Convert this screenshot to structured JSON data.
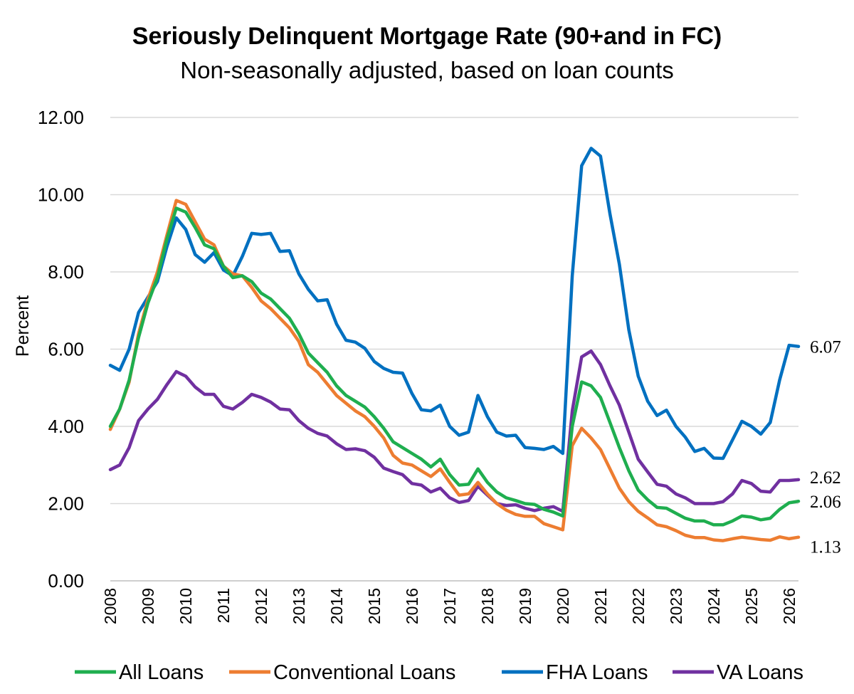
{
  "chart_data": {
    "type": "line",
    "title": "Seriously Delinquent Mortgage Rate (90+and in FC)",
    "subtitle": "Non-seasonally adjusted, based on loan counts",
    "ylabel": "Percent",
    "ylim": [
      0,
      12
    ],
    "yticks": [
      "0.00",
      "2.00",
      "4.00",
      "6.00",
      "8.00",
      "10.00",
      "12.00"
    ],
    "xlim": [
      2008,
      2026.25
    ],
    "xticks": [
      "2008",
      "2009",
      "2010",
      "2011",
      "2012",
      "2013",
      "2014",
      "2015",
      "2016",
      "2017",
      "2018",
      "2019",
      "2020",
      "2021",
      "2022",
      "2023",
      "2024",
      "2025",
      "2026"
    ],
    "grid": "horizontal",
    "legend_position": "bottom",
    "series": [
      {
        "name": "All Loans",
        "color": "#1fae4f",
        "end_label": "2.06",
        "points": [
          [
            2008,
            4.0
          ],
          [
            2008.25,
            4.45
          ],
          [
            2008.5,
            5.2
          ],
          [
            2008.75,
            6.3
          ],
          [
            2009,
            7.2
          ],
          [
            2009.25,
            7.85
          ],
          [
            2009.5,
            8.85
          ],
          [
            2009.75,
            9.65
          ],
          [
            2010,
            9.55
          ],
          [
            2010.25,
            9.15
          ],
          [
            2010.5,
            8.7
          ],
          [
            2010.75,
            8.6
          ],
          [
            2011,
            8.15
          ],
          [
            2011.25,
            7.85
          ],
          [
            2011.5,
            7.9
          ],
          [
            2011.75,
            7.75
          ],
          [
            2012,
            7.45
          ],
          [
            2012.25,
            7.3
          ],
          [
            2012.5,
            7.05
          ],
          [
            2012.75,
            6.8
          ],
          [
            2013,
            6.4
          ],
          [
            2013.25,
            5.9
          ],
          [
            2013.5,
            5.65
          ],
          [
            2013.75,
            5.4
          ],
          [
            2014,
            5.05
          ],
          [
            2014.25,
            4.8
          ],
          [
            2014.5,
            4.65
          ],
          [
            2014.75,
            4.5
          ],
          [
            2015,
            4.25
          ],
          [
            2015.25,
            3.95
          ],
          [
            2015.5,
            3.6
          ],
          [
            2015.75,
            3.45
          ],
          [
            2016,
            3.3
          ],
          [
            2016.25,
            3.15
          ],
          [
            2016.5,
            2.95
          ],
          [
            2016.75,
            3.15
          ],
          [
            2017,
            2.75
          ],
          [
            2017.25,
            2.48
          ],
          [
            2017.5,
            2.5
          ],
          [
            2017.75,
            2.9
          ],
          [
            2018,
            2.55
          ],
          [
            2018.25,
            2.3
          ],
          [
            2018.5,
            2.15
          ],
          [
            2018.75,
            2.08
          ],
          [
            2019,
            2.0
          ],
          [
            2019.25,
            1.98
          ],
          [
            2019.5,
            1.85
          ],
          [
            2019.75,
            1.78
          ],
          [
            2020,
            1.68
          ],
          [
            2020.25,
            4.0
          ],
          [
            2020.5,
            5.15
          ],
          [
            2020.75,
            5.05
          ],
          [
            2021,
            4.75
          ],
          [
            2021.25,
            4.1
          ],
          [
            2021.5,
            3.45
          ],
          [
            2021.75,
            2.85
          ],
          [
            2022,
            2.35
          ],
          [
            2022.25,
            2.1
          ],
          [
            2022.5,
            1.9
          ],
          [
            2022.75,
            1.88
          ],
          [
            2023,
            1.75
          ],
          [
            2023.25,
            1.62
          ],
          [
            2023.5,
            1.55
          ],
          [
            2023.75,
            1.55
          ],
          [
            2024,
            1.45
          ],
          [
            2024.25,
            1.45
          ],
          [
            2024.5,
            1.55
          ],
          [
            2024.75,
            1.68
          ],
          [
            2025,
            1.65
          ],
          [
            2025.25,
            1.58
          ],
          [
            2025.5,
            1.62
          ],
          [
            2025.75,
            1.85
          ],
          [
            2026,
            2.02
          ],
          [
            2026.25,
            2.06
          ]
        ]
      },
      {
        "name": "Conventional Loans",
        "color": "#ed7d31",
        "end_label": "1.13",
        "points": [
          [
            2008,
            3.92
          ],
          [
            2008.25,
            4.45
          ],
          [
            2008.5,
            5.15
          ],
          [
            2008.75,
            6.4
          ],
          [
            2009,
            7.3
          ],
          [
            2009.25,
            8.0
          ],
          [
            2009.5,
            8.95
          ],
          [
            2009.75,
            9.85
          ],
          [
            2010,
            9.75
          ],
          [
            2010.25,
            9.3
          ],
          [
            2010.5,
            8.85
          ],
          [
            2010.75,
            8.7
          ],
          [
            2011,
            8.15
          ],
          [
            2011.25,
            7.95
          ],
          [
            2011.5,
            7.9
          ],
          [
            2011.75,
            7.6
          ],
          [
            2012,
            7.25
          ],
          [
            2012.25,
            7.05
          ],
          [
            2012.5,
            6.8
          ],
          [
            2012.75,
            6.55
          ],
          [
            2013,
            6.2
          ],
          [
            2013.25,
            5.6
          ],
          [
            2013.5,
            5.4
          ],
          [
            2013.75,
            5.1
          ],
          [
            2014,
            4.8
          ],
          [
            2014.25,
            4.6
          ],
          [
            2014.5,
            4.4
          ],
          [
            2014.75,
            4.25
          ],
          [
            2015,
            4.0
          ],
          [
            2015.25,
            3.7
          ],
          [
            2015.5,
            3.25
          ],
          [
            2015.75,
            3.05
          ],
          [
            2016,
            3.0
          ],
          [
            2016.25,
            2.85
          ],
          [
            2016.5,
            2.7
          ],
          [
            2016.75,
            2.9
          ],
          [
            2017,
            2.55
          ],
          [
            2017.25,
            2.22
          ],
          [
            2017.5,
            2.25
          ],
          [
            2017.75,
            2.55
          ],
          [
            2018,
            2.25
          ],
          [
            2018.25,
            2.0
          ],
          [
            2018.5,
            1.83
          ],
          [
            2018.75,
            1.72
          ],
          [
            2019,
            1.67
          ],
          [
            2019.25,
            1.67
          ],
          [
            2019.5,
            1.48
          ],
          [
            2019.75,
            1.4
          ],
          [
            2020,
            1.32
          ],
          [
            2020.25,
            3.5
          ],
          [
            2020.5,
            3.95
          ],
          [
            2020.75,
            3.7
          ],
          [
            2021,
            3.4
          ],
          [
            2021.25,
            2.9
          ],
          [
            2021.5,
            2.4
          ],
          [
            2021.75,
            2.05
          ],
          [
            2022,
            1.8
          ],
          [
            2022.25,
            1.63
          ],
          [
            2022.5,
            1.45
          ],
          [
            2022.75,
            1.4
          ],
          [
            2023,
            1.3
          ],
          [
            2023.25,
            1.18
          ],
          [
            2023.5,
            1.12
          ],
          [
            2023.75,
            1.12
          ],
          [
            2024,
            1.06
          ],
          [
            2024.25,
            1.04
          ],
          [
            2024.5,
            1.09
          ],
          [
            2024.75,
            1.13
          ],
          [
            2025,
            1.1
          ],
          [
            2025.25,
            1.07
          ],
          [
            2025.5,
            1.05
          ],
          [
            2025.75,
            1.14
          ],
          [
            2026,
            1.09
          ],
          [
            2026.25,
            1.13
          ]
        ]
      },
      {
        "name": "FHA Loans",
        "color": "#0070c0",
        "end_label": "6.07",
        "points": [
          [
            2008,
            5.58
          ],
          [
            2008.25,
            5.45
          ],
          [
            2008.5,
            6.0
          ],
          [
            2008.75,
            6.95
          ],
          [
            2009,
            7.35
          ],
          [
            2009.25,
            7.75
          ],
          [
            2009.5,
            8.65
          ],
          [
            2009.75,
            9.4
          ],
          [
            2010,
            9.1
          ],
          [
            2010.25,
            8.45
          ],
          [
            2010.5,
            8.25
          ],
          [
            2010.75,
            8.5
          ],
          [
            2011,
            8.05
          ],
          [
            2011.25,
            7.9
          ],
          [
            2011.5,
            8.4
          ],
          [
            2011.75,
            9.0
          ],
          [
            2012,
            8.97
          ],
          [
            2012.25,
            9.0
          ],
          [
            2012.5,
            8.53
          ],
          [
            2012.75,
            8.55
          ],
          [
            2013,
            7.95
          ],
          [
            2013.25,
            7.55
          ],
          [
            2013.5,
            7.25
          ],
          [
            2013.75,
            7.28
          ],
          [
            2014,
            6.65
          ],
          [
            2014.25,
            6.23
          ],
          [
            2014.5,
            6.18
          ],
          [
            2014.75,
            6.02
          ],
          [
            2015,
            5.68
          ],
          [
            2015.25,
            5.5
          ],
          [
            2015.5,
            5.4
          ],
          [
            2015.75,
            5.38
          ],
          [
            2016,
            4.85
          ],
          [
            2016.25,
            4.43
          ],
          [
            2016.5,
            4.4
          ],
          [
            2016.75,
            4.55
          ],
          [
            2017,
            4.0
          ],
          [
            2017.25,
            3.77
          ],
          [
            2017.5,
            3.85
          ],
          [
            2017.75,
            4.8
          ],
          [
            2018,
            4.25
          ],
          [
            2018.25,
            3.85
          ],
          [
            2018.5,
            3.75
          ],
          [
            2018.75,
            3.77
          ],
          [
            2019,
            3.45
          ],
          [
            2019.25,
            3.43
          ],
          [
            2019.5,
            3.4
          ],
          [
            2019.75,
            3.48
          ],
          [
            2020,
            3.3
          ],
          [
            2020.25,
            7.9
          ],
          [
            2020.5,
            10.75
          ],
          [
            2020.75,
            11.2
          ],
          [
            2021,
            11.0
          ],
          [
            2021.25,
            9.5
          ],
          [
            2021.5,
            8.2
          ],
          [
            2021.75,
            6.5
          ],
          [
            2022,
            5.3
          ],
          [
            2022.25,
            4.65
          ],
          [
            2022.5,
            4.28
          ],
          [
            2022.75,
            4.42
          ],
          [
            2023,
            4.0
          ],
          [
            2023.25,
            3.72
          ],
          [
            2023.5,
            3.35
          ],
          [
            2023.75,
            3.43
          ],
          [
            2024,
            3.18
          ],
          [
            2024.25,
            3.17
          ],
          [
            2024.5,
            3.65
          ],
          [
            2024.75,
            4.13
          ],
          [
            2025,
            4.0
          ],
          [
            2025.25,
            3.8
          ],
          [
            2025.5,
            4.1
          ],
          [
            2025.75,
            5.2
          ],
          [
            2026,
            6.1
          ],
          [
            2026.25,
            6.07
          ]
        ]
      },
      {
        "name": "VA Loans",
        "color": "#7030a0",
        "end_label": "2.62",
        "points": [
          [
            2008,
            2.88
          ],
          [
            2008.25,
            3.0
          ],
          [
            2008.5,
            3.45
          ],
          [
            2008.75,
            4.15
          ],
          [
            2009,
            4.45
          ],
          [
            2009.25,
            4.7
          ],
          [
            2009.5,
            5.08
          ],
          [
            2009.75,
            5.42
          ],
          [
            2010,
            5.3
          ],
          [
            2010.25,
            5.02
          ],
          [
            2010.5,
            4.83
          ],
          [
            2010.75,
            4.83
          ],
          [
            2011,
            4.52
          ],
          [
            2011.25,
            4.45
          ],
          [
            2011.5,
            4.62
          ],
          [
            2011.75,
            4.83
          ],
          [
            2012,
            4.75
          ],
          [
            2012.25,
            4.63
          ],
          [
            2012.5,
            4.45
          ],
          [
            2012.75,
            4.43
          ],
          [
            2013,
            4.15
          ],
          [
            2013.25,
            3.95
          ],
          [
            2013.5,
            3.82
          ],
          [
            2013.75,
            3.75
          ],
          [
            2014,
            3.55
          ],
          [
            2014.25,
            3.4
          ],
          [
            2014.5,
            3.42
          ],
          [
            2014.75,
            3.37
          ],
          [
            2015,
            3.2
          ],
          [
            2015.25,
            2.92
          ],
          [
            2015.5,
            2.83
          ],
          [
            2015.75,
            2.75
          ],
          [
            2016,
            2.52
          ],
          [
            2016.25,
            2.48
          ],
          [
            2016.5,
            2.3
          ],
          [
            2016.75,
            2.4
          ],
          [
            2017,
            2.15
          ],
          [
            2017.25,
            2.03
          ],
          [
            2017.5,
            2.08
          ],
          [
            2017.75,
            2.45
          ],
          [
            2018,
            2.22
          ],
          [
            2018.25,
            2.0
          ],
          [
            2018.5,
            1.95
          ],
          [
            2018.75,
            1.97
          ],
          [
            2019,
            1.88
          ],
          [
            2019.25,
            1.82
          ],
          [
            2019.5,
            1.88
          ],
          [
            2019.75,
            1.92
          ],
          [
            2020,
            1.8
          ],
          [
            2020.25,
            4.4
          ],
          [
            2020.5,
            5.8
          ],
          [
            2020.75,
            5.95
          ],
          [
            2021,
            5.6
          ],
          [
            2021.25,
            5.05
          ],
          [
            2021.5,
            4.55
          ],
          [
            2021.75,
            3.85
          ],
          [
            2022,
            3.15
          ],
          [
            2022.25,
            2.82
          ],
          [
            2022.5,
            2.5
          ],
          [
            2022.75,
            2.45
          ],
          [
            2023,
            2.25
          ],
          [
            2023.25,
            2.15
          ],
          [
            2023.5,
            2.0
          ],
          [
            2023.75,
            2.0
          ],
          [
            2024,
            2.0
          ],
          [
            2024.25,
            2.05
          ],
          [
            2024.5,
            2.25
          ],
          [
            2024.75,
            2.6
          ],
          [
            2025,
            2.52
          ],
          [
            2025.25,
            2.32
          ],
          [
            2025.5,
            2.3
          ],
          [
            2025.75,
            2.6
          ],
          [
            2026,
            2.6
          ],
          [
            2026.25,
            2.62
          ]
        ]
      }
    ]
  }
}
